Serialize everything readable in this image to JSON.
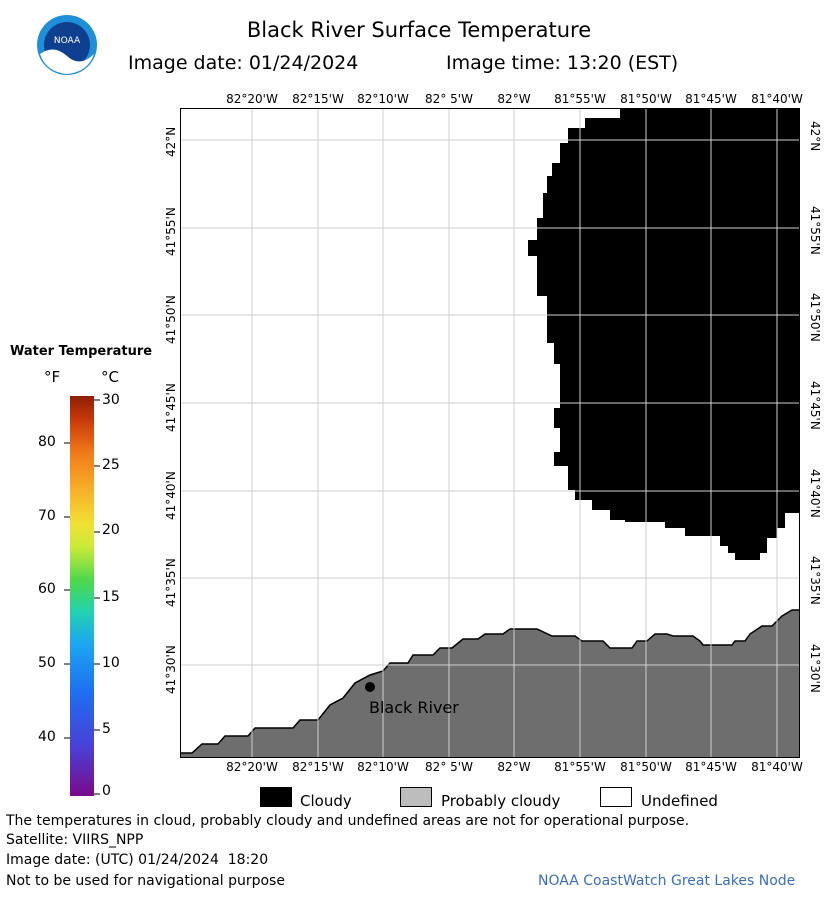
{
  "header": {
    "title": "Black River Surface Temperature",
    "image_date": "Image date: 01/24/2024",
    "image_time": "Image time: 13:20 (EST)"
  },
  "logo": {
    "text": "NOAA",
    "icon": "noaa-logo-icon"
  },
  "map": {
    "top_longitudes": [
      "82°20'W",
      "82°15'W",
      "82°10'W",
      "82° 5'W",
      "82°W",
      "81°55'W",
      "81°50'W",
      "81°45'W",
      "81°40'W"
    ],
    "bottom_longitudes": [
      "82°20'W",
      "82°15'W",
      "82°10'W",
      "82° 5'W",
      "82°W",
      "81°55'W",
      "81°50'W",
      "81°45'W",
      "81°40'W"
    ],
    "latitudes": [
      "42°N",
      "41°55'N",
      "41°50'N",
      "41°45'N",
      "41°40'N",
      "41°35'N",
      "41°30'N"
    ],
    "place_label": "Black River",
    "colors": {
      "cloud": "#000000",
      "land": "#6e6e6e",
      "water": "#ffffff"
    }
  },
  "color_scale": {
    "title": "Water Temperature",
    "unit_f": "°F",
    "unit_c": "°C",
    "fahrenheit_ticks": [
      "80",
      "70",
      "60",
      "50",
      "40"
    ],
    "celsius_ticks": [
      "30",
      "25",
      "20",
      "15",
      "10",
      "5",
      "0"
    ]
  },
  "key": {
    "cloudy": "Cloudy",
    "probably_cloudy": "Probably cloudy",
    "undefined": "Undefined"
  },
  "footer": {
    "disclaimer": "The temperatures in cloud, probably cloudy and undefined areas are not for operational purpose.",
    "satellite": "Satellite: VIIRS_NPP",
    "utc_date": "Image date: (UTC) 01/24/2024  18:20",
    "nav_warning": "Not to be used for navigational purpose",
    "credit": "NOAA CoastWatch Great Lakes Node"
  }
}
